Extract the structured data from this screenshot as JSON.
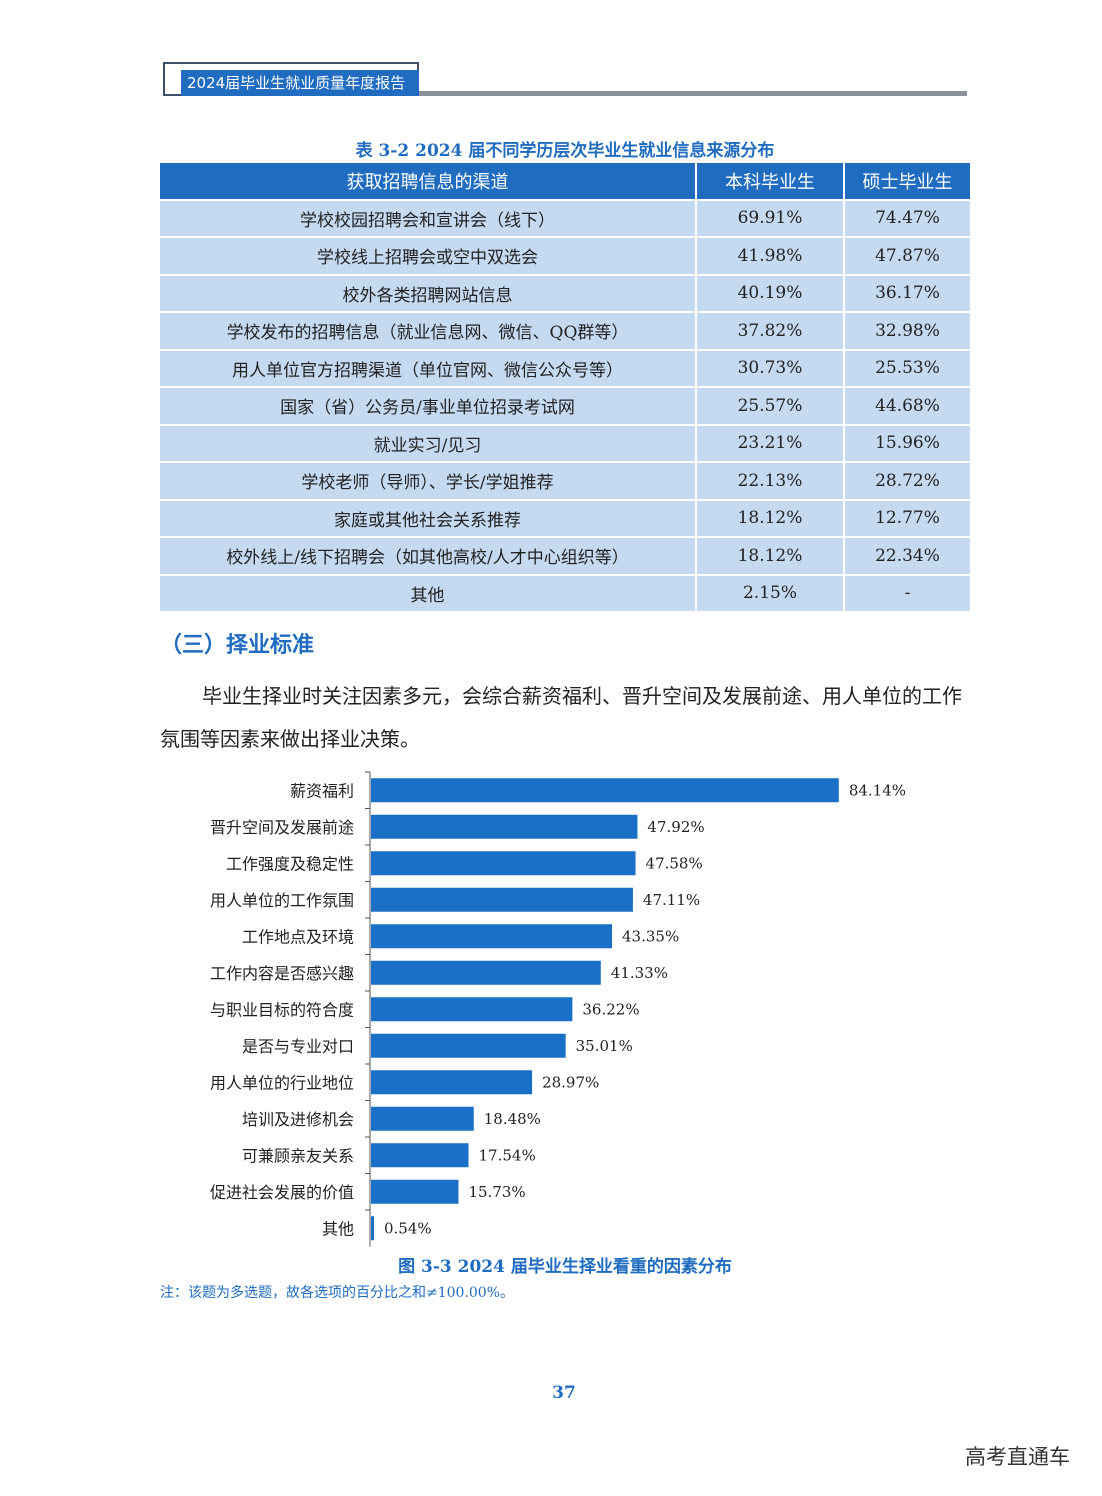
{
  "header": {
    "title": "2024届毕业生就业质量年度报告"
  },
  "table": {
    "title": "表 3-2  2024 届不同学历层次毕业生就业信息来源分布",
    "columns": [
      "获取招聘信息的渠道",
      "本科毕业生",
      "硕士毕业生"
    ],
    "rows": [
      [
        "学校校园招聘会和宣讲会（线下）",
        "69.91%",
        "74.47%"
      ],
      [
        "学校线上招聘会或空中双选会",
        "41.98%",
        "47.87%"
      ],
      [
        "校外各类招聘网站信息",
        "40.19%",
        "36.17%"
      ],
      [
        "学校发布的招聘信息（就业信息网、微信、QQ群等）",
        "37.82%",
        "32.98%"
      ],
      [
        "用人单位官方招聘渠道（单位官网、微信公众号等）",
        "30.73%",
        "25.53%"
      ],
      [
        "国家（省）公务员/事业单位招录考试网",
        "25.57%",
        "44.68%"
      ],
      [
        "就业实习/见习",
        "23.21%",
        "15.96%"
      ],
      [
        "学校老师（导师）、学长/学姐推荐",
        "22.13%",
        "28.72%"
      ],
      [
        "家庭或其他社会关系推荐",
        "18.12%",
        "12.77%"
      ],
      [
        "校外线上/线下招聘会（如其他高校/人才中心组织等）",
        "18.12%",
        "22.34%"
      ],
      [
        "其他",
        "2.15%",
        "-"
      ]
    ]
  },
  "section": {
    "heading": "（三）择业标准",
    "paragraph": "毕业生择业时关注因素多元，会综合薪资福利、晋升空间及发展前途、用人单位的工作氛围等因素来做出择业决策。"
  },
  "chart_data": {
    "type": "bar",
    "orientation": "horizontal",
    "categories": [
      "薪资福利",
      "晋升空间及发展前途",
      "工作强度及稳定性",
      "用人单位的工作氛围",
      "工作地点及环境",
      "工作内容是否感兴趣",
      "与职业目标的符合度",
      "是否与专业对口",
      "用人单位的行业地位",
      "培训及进修机会",
      "可兼顾亲友关系",
      "促进社会发展的价值",
      "其他"
    ],
    "values": [
      84.14,
      47.92,
      47.58,
      47.11,
      43.35,
      41.33,
      36.22,
      35.01,
      28.97,
      18.48,
      17.54,
      15.73,
      0.54
    ],
    "value_labels": [
      "84.14%",
      "47.92%",
      "47.58%",
      "47.11%",
      "43.35%",
      "41.33%",
      "36.22%",
      "35.01%",
      "28.97%",
      "18.48%",
      "17.54%",
      "15.73%",
      "0.54%"
    ],
    "bar_color": "#1a6fc6",
    "xlim": [
      0,
      100
    ],
    "grid": false,
    "title": "图 3-3  2024 届毕业生择业看重的因素分布"
  },
  "note": "注：该题为多选题，故各选项的百分比之和≠100.00%。",
  "page_number": "37",
  "watermark": "高考直通车"
}
